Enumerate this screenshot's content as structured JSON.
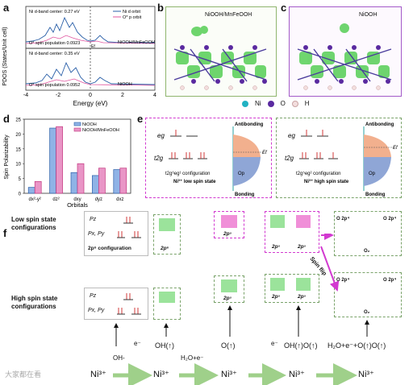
{
  "panel_labels": [
    "a",
    "b",
    "c",
    "d",
    "e",
    "f"
  ],
  "panel_a": {
    "ylabel": "PDOS (States/Unit cell)",
    "xlabel": "Energy (eV)",
    "xticks": [
      "-4",
      "-2",
      "0",
      "2",
      "4"
    ],
    "ef_label": "Ef",
    "top": {
      "center_text": "Ni d-band center: 0.27 eV",
      "population_text": "O* spin population 0.0923",
      "legend": [
        "Ni d orbit",
        "O* p orbit"
      ],
      "system": "NiOOH/MnFeOOH"
    },
    "bottom": {
      "center_text": "Ni d-band center: 0.35 eV",
      "population_text": "O* spin population 0.0952",
      "system": "NiOOH"
    }
  },
  "panel_b": {
    "title": "NiOOH/MnFeOOH"
  },
  "panel_c": {
    "title": "NiOOH"
  },
  "atom_legend": [
    "Ni",
    "O",
    "H"
  ],
  "panel_d": {
    "ylabel": "Spin Polarizability",
    "xlabel": "Orbitals",
    "legend": [
      "NiOOH",
      "NiOOH/MnFeOOH"
    ],
    "chart_data": {
      "type": "bar",
      "categories": [
        "dx²-y²",
        "dz²",
        "dxy",
        "dyz",
        "dxz"
      ],
      "series": [
        {
          "name": "NiOOH",
          "values": [
            2,
            22,
            7,
            6,
            8
          ]
        },
        {
          "name": "NiOOH/MnFeOOH",
          "values": [
            4,
            22.5,
            10,
            8.5,
            8.5
          ]
        }
      ],
      "yticks": [
        "0",
        "5",
        "10",
        "15",
        "20",
        "25"
      ],
      "ylim": [
        0,
        25
      ]
    }
  },
  "panel_e": {
    "left": {
      "eg": "eg",
      "t2g": "t2g",
      "config": "t2g⁶eg¹ configuration",
      "state": "Ni³⁺ low spin state",
      "antibonding": "Antibonding",
      "bonding": "Bonding",
      "ef": "Ef",
      "op": "Op"
    },
    "right": {
      "eg": "eg",
      "t2g": "t2g",
      "config": "t2g⁵eg² configuration",
      "state": "Ni³⁺ high spin state",
      "antibonding": "Antibonding",
      "bonding": "Bonding",
      "ef": "Ef",
      "op": "Op"
    }
  },
  "panel_f": {
    "low_label": "Low spin state configurations",
    "high_label": "High spin state configurations",
    "pz": "Pz",
    "pxpy": "Px, Py",
    "config6": "2p⁶ configuration",
    "boxes": [
      "2p⁶",
      "2p⁵",
      "2p⁵",
      "2p⁵"
    ],
    "mo_labels": [
      "O 2p⁴",
      "O 2p⁴",
      "O₂"
    ],
    "spin_flip": "Spin flip",
    "steps": [
      "OH-",
      "e⁻",
      "OH(↑)",
      "H₂O+e⁻",
      "O(↑)",
      "e⁻",
      "OH(↑)O(↑)",
      "H₂O+e⁻+O(↑)O(↑)"
    ],
    "ni": "Ni³⁺"
  },
  "watermark": "大家都在看",
  "colors": {
    "blue": "#2a5fa8",
    "pink": "#e0559f",
    "green_dash": "#7aa36a",
    "magenta_dash": "#d23ad0",
    "antibond_blue": "#8fa6d6",
    "orange": "#f2b08e"
  }
}
